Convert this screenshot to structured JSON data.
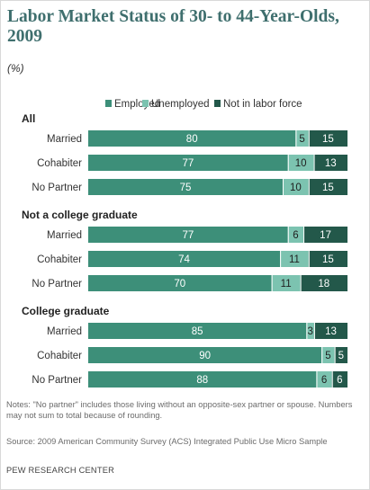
{
  "title": "Labor Market Status of 30- to 44-Year-Olds, 2009",
  "unit": "(%)",
  "notes": "Notes: \"No partner\" includes those living without an opposite-sex partner or spouse. Numbers may not sum to total because of rounding.",
  "source": "Source: 2009 American Community Survey (ACS) Integrated Public Use Micro Sample",
  "credit": "PEW RESEARCH CENTER",
  "colors": {
    "employed": "#3d8f79",
    "unemployed": "#7cc3b0",
    "not_in_labor_force": "#23584a",
    "text": "#333333"
  },
  "chart_data": {
    "type": "bar",
    "orientation": "horizontal",
    "stacked": true,
    "series_names": [
      "Employed",
      "Unemployed",
      "Not in labor force"
    ],
    "groups": [
      {
        "name": "All",
        "rows": [
          {
            "label": "Married",
            "values": [
              80,
              5,
              15
            ]
          },
          {
            "label": "Cohabiter",
            "values": [
              77,
              10,
              13
            ]
          },
          {
            "label": "No Partner",
            "values": [
              75,
              10,
              15
            ]
          }
        ]
      },
      {
        "name": "Not a college graduate",
        "rows": [
          {
            "label": "Married",
            "values": [
              77,
              6,
              17
            ]
          },
          {
            "label": "Cohabiter",
            "values": [
              74,
              11,
              15
            ]
          },
          {
            "label": "No Partner",
            "values": [
              70,
              11,
              18
            ]
          }
        ]
      },
      {
        "name": "College graduate",
        "rows": [
          {
            "label": "Married",
            "values": [
              85,
              3,
              13
            ]
          },
          {
            "label": "Cohabiter",
            "values": [
              90,
              5,
              5
            ]
          },
          {
            "label": "No Partner",
            "values": [
              88,
              6,
              6
            ]
          }
        ]
      }
    ]
  }
}
